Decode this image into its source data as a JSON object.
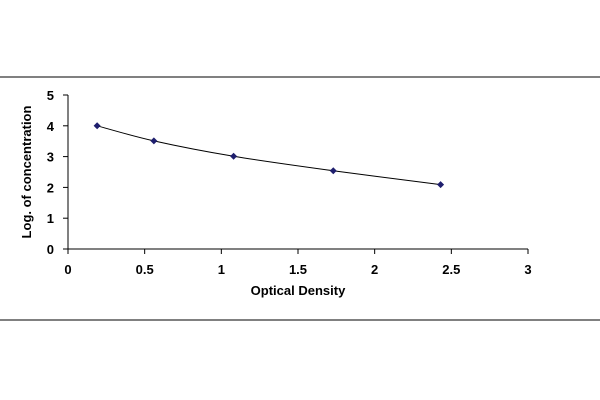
{
  "chart_data": {
    "type": "scatter",
    "title": "",
    "xlabel": "Optical Density",
    "ylabel": "Log. of concentration",
    "xlim": [
      0,
      3
    ],
    "ylim": [
      0,
      5
    ],
    "xticks": [
      "0",
      "0.5",
      "1",
      "1.5",
      "2",
      "2.5",
      "3"
    ],
    "yticks": [
      "0",
      "1",
      "2",
      "3",
      "4",
      "5"
    ],
    "grid": false,
    "legend": "none",
    "series": [
      {
        "color": "#1f1f6e",
        "trendline": "smooth",
        "points": [
          {
            "x": 0.19,
            "y": 4.0
          },
          {
            "x": 0.56,
            "y": 3.51
          },
          {
            "x": 1.08,
            "y": 3.01
          },
          {
            "x": 1.73,
            "y": 2.54
          },
          {
            "x": 2.43,
            "y": 2.09
          }
        ]
      }
    ]
  }
}
